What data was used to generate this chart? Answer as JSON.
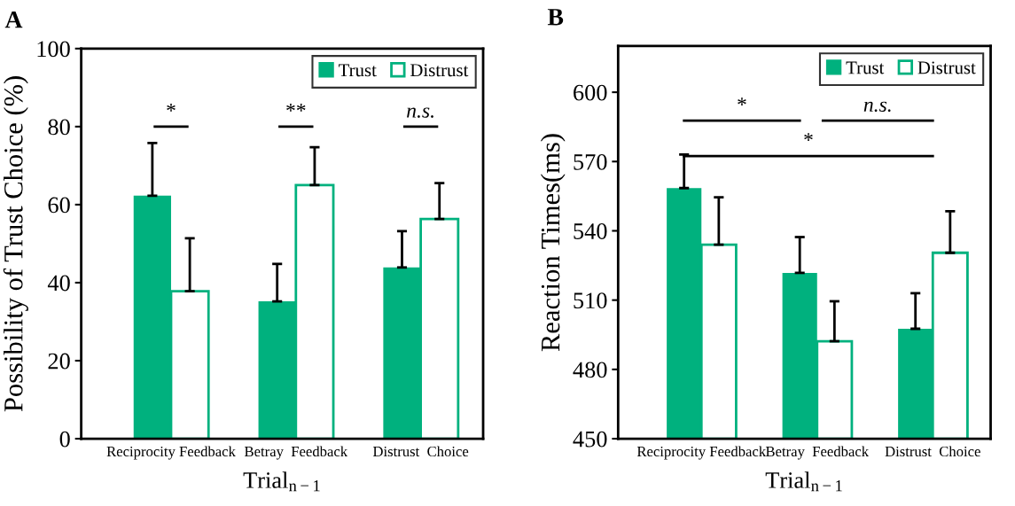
{
  "chart_data": [
    {
      "type": "bar",
      "title": "A",
      "xlabel": "Trial$_{n−1}$",
      "ylabel": "Possibility of Trust Choice (%)",
      "categories": [
        "Reciprocity Feedback",
        "Betray  Feedback",
        "Distrust  Choice"
      ],
      "series": [
        {
          "name": "Trust",
          "color": "#00b17e",
          "values": [
            62.3,
            35.2,
            43.9
          ],
          "errors": [
            [
              62.3,
              75.8
            ],
            [
              35.2,
              44.8
            ],
            [
              43.9,
              53.2
            ]
          ]
        },
        {
          "name": "Distrust",
          "color": "#00b17e",
          "values": [
            37.8,
            65.0,
            56.3
          ],
          "errors": [
            [
              37.8,
              51.4
            ],
            [
              65.0,
              74.7
            ],
            [
              56.3,
              65.5
            ]
          ]
        }
      ],
      "ylim": [
        0,
        100
      ],
      "yticks": [
        0,
        20,
        40,
        60,
        80,
        100
      ],
      "grid": false,
      "legend": "top right",
      "annotations": [
        "*",
        "**",
        "n.s."
      ]
    },
    {
      "type": "bar",
      "title": "B",
      "xlabel": "Trial$_{n−1}$",
      "ylabel": "Reaction Times(ms)",
      "categories": [
        "Reciprocity Feedback",
        "Betray  Feedback",
        "Distrust  Choice"
      ],
      "series": [
        {
          "name": "Trust",
          "color": "#00b17e",
          "values": [
            558.5,
            521.8,
            497.6
          ],
          "errors": [
            [
              558.5,
              573.0
            ],
            [
              521.8,
              537.3
            ],
            [
              497.6,
              513.0
            ]
          ]
        },
        {
          "name": "Distrust",
          "color": "#00b17e",
          "values": [
            534.0,
            492.2,
            530.5
          ],
          "errors": [
            [
              534.0,
              554.5
            ],
            [
              492.2,
              509.5
            ],
            [
              530.5,
              548.5
            ]
          ]
        }
      ],
      "ylim": [
        450,
        620
      ],
      "yticks": [
        450,
        480,
        510,
        540,
        570,
        600
      ],
      "grid": false,
      "legend": "top right",
      "annotations": [
        "*",
        "n.s.",
        "*"
      ]
    }
  ]
}
